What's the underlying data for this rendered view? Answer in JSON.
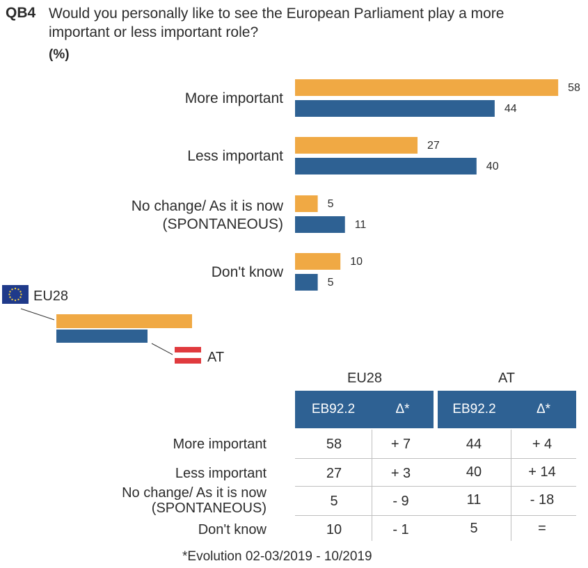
{
  "question": {
    "code": "QB4",
    "text": "Would you personally like to see the European Parliament play a more important or less important role?",
    "unit": "(%)"
  },
  "colors": {
    "eu28": "#f0a944",
    "at": "#2e6193",
    "table_header": "#2e6193"
  },
  "legend": {
    "eu28_label": "EU28",
    "at_label": "AT"
  },
  "chart_data": {
    "type": "bar",
    "orientation": "horizontal",
    "categories": [
      "More important",
      "Less important",
      "No change/ As it is now (SPONTANEOUS)",
      "Don't know"
    ],
    "series": [
      {
        "name": "EU28",
        "values": [
          58,
          27,
          5,
          10
        ]
      },
      {
        "name": "AT",
        "values": [
          44,
          40,
          11,
          5
        ]
      }
    ],
    "title": "Would you personally like to see the European Parliament play a more important or less important role?",
    "unit": "(%)",
    "xlim": [
      0,
      60
    ],
    "grid": false,
    "legend_position": "left"
  },
  "table": {
    "groups": [
      "EU28",
      "AT"
    ],
    "subheaders": [
      "EB92.2",
      "Δ*"
    ],
    "rows": [
      {
        "label_lines": [
          "More important"
        ],
        "eu_val": "58",
        "eu_delta": "+ 7",
        "at_val": "44",
        "at_delta": "+ 4"
      },
      {
        "label_lines": [
          "Less important"
        ],
        "eu_val": "27",
        "eu_delta": "+ 3",
        "at_val": "40",
        "at_delta": "+ 14"
      },
      {
        "label_lines": [
          "No change/ As it is now",
          "(SPONTANEOUS)"
        ],
        "eu_val": "5",
        "eu_delta": "- 9",
        "at_val": "11",
        "at_delta": "- 18"
      },
      {
        "label_lines": [
          "Don't know"
        ],
        "eu_val": "10",
        "eu_delta": "- 1",
        "at_val": "5",
        "at_delta": "="
      }
    ],
    "footnote": "*Evolution 02-03/2019 - 10/2019"
  }
}
